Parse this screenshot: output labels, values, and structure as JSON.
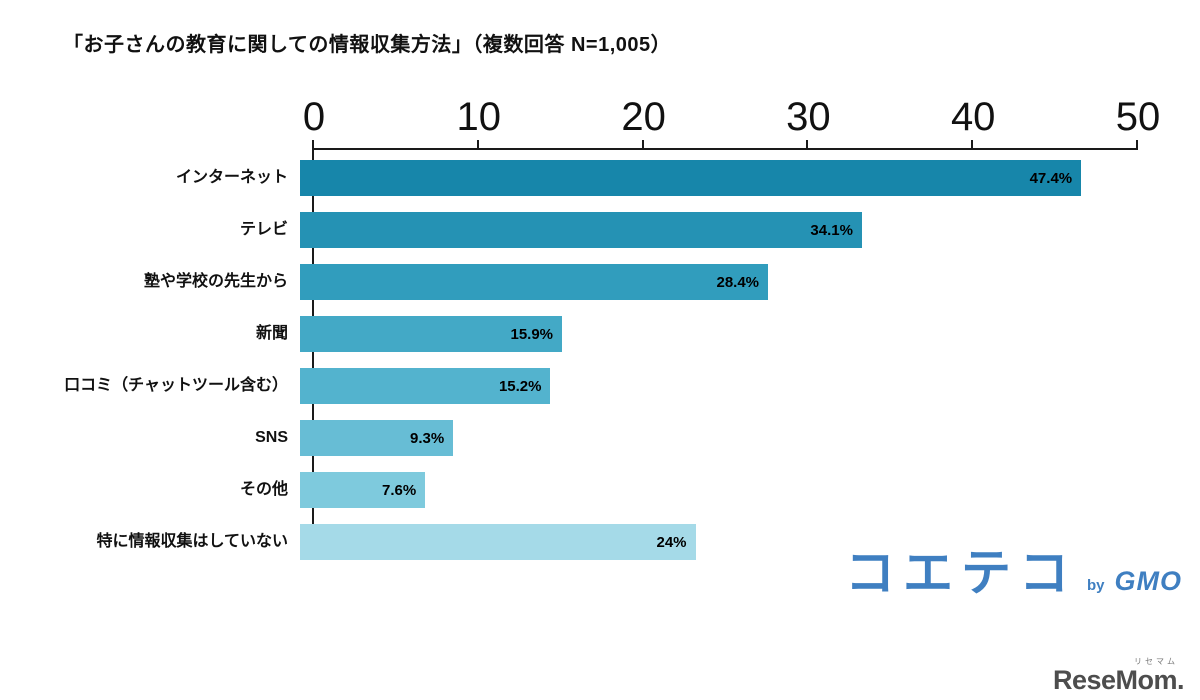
{
  "title": "「お子さんの教育に関しての情報収集方法」（複数回答 N=1,005）",
  "chart_data": {
    "type": "bar",
    "orientation": "horizontal",
    "title": "「お子さんの教育に関しての情報収集方法」（複数回答 N=1,005）",
    "categories": [
      "インターネット",
      "テレビ",
      "塾や学校の先生から",
      "新聞",
      "口コミ（チャットツール含む）",
      "SNS",
      "その他",
      "特に情報収集はしていない"
    ],
    "values": [
      47.4,
      34.1,
      28.4,
      15.9,
      15.2,
      9.3,
      7.6,
      24
    ],
    "value_labels": [
      "47.4%",
      "34.1%",
      "28.4%",
      "15.9%",
      "15.2%",
      "9.3%",
      "7.6%",
      "24%"
    ],
    "bar_colors": [
      "#1786AA",
      "#2592B4",
      "#319DBD",
      "#43A9C6",
      "#53B3CE",
      "#67BDD5",
      "#7ECADD",
      "#A5DAE8"
    ],
    "xlim": [
      0,
      50
    ],
    "x_ticks": [
      0,
      10,
      20,
      30,
      40,
      50
    ],
    "grid": false,
    "axis_position": "top",
    "legend": "none"
  },
  "branding": {
    "coeteco_word": "コエテコ",
    "coeteco_by": "by",
    "coeteco_gmo": "GMO",
    "coeteco_color": "#3F7FC1",
    "resemom_word": "ReseMom.",
    "resemom_kana": "リセマム"
  }
}
